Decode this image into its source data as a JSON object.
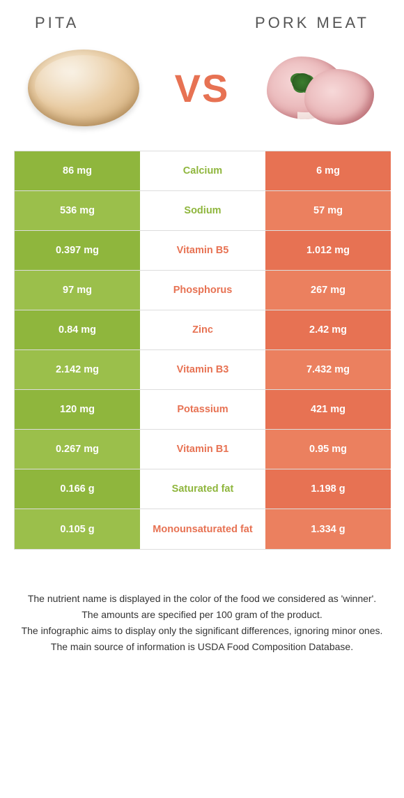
{
  "titles": {
    "left": "Pita",
    "right": "Pork meat",
    "vs": "VS"
  },
  "colors": {
    "left": "#8fb63d",
    "leftAlt": "#9bbf4b",
    "right": "#e77253",
    "rightAlt": "#eb805f",
    "border": "#dddddd",
    "text": "#ffffff"
  },
  "table": {
    "rows": [
      {
        "label": "Calcium",
        "left": "86 mg",
        "right": "6 mg",
        "winner": "left"
      },
      {
        "label": "Sodium",
        "left": "536 mg",
        "right": "57 mg",
        "winner": "left"
      },
      {
        "label": "Vitamin B5",
        "left": "0.397 mg",
        "right": "1.012 mg",
        "winner": "right"
      },
      {
        "label": "Phosphorus",
        "left": "97 mg",
        "right": "267 mg",
        "winner": "right"
      },
      {
        "label": "Zinc",
        "left": "0.84 mg",
        "right": "2.42 mg",
        "winner": "right"
      },
      {
        "label": "Vitamin B3",
        "left": "2.142 mg",
        "right": "7.432 mg",
        "winner": "right"
      },
      {
        "label": "Potassium",
        "left": "120 mg",
        "right": "421 mg",
        "winner": "right"
      },
      {
        "label": "Vitamin B1",
        "left": "0.267 mg",
        "right": "0.95 mg",
        "winner": "right"
      },
      {
        "label": "Saturated fat",
        "left": "0.166 g",
        "right": "1.198 g",
        "winner": "left"
      },
      {
        "label": "Monounsaturated fat",
        "left": "0.105 g",
        "right": "1.334 g",
        "winner": "right"
      }
    ]
  },
  "footer": {
    "l1": "The nutrient name is displayed in the color of the food we considered as 'winner'.",
    "l2": "The amounts are specified per 100 gram of the product.",
    "l3": "The infographic aims to display only the significant differences, ignoring minor ones.",
    "l4": "The main source of information is USDA Food Composition Database."
  }
}
